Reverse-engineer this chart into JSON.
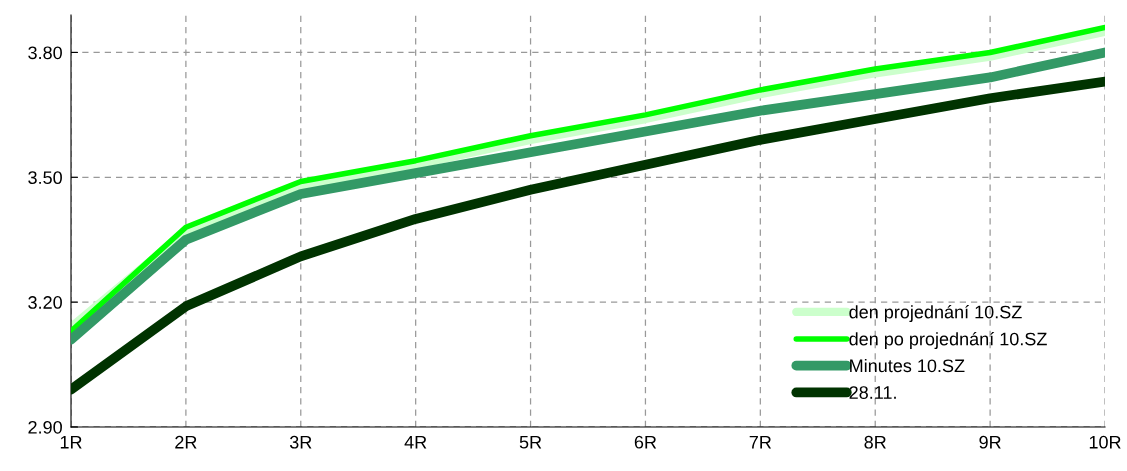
{
  "chart_data": {
    "type": "line",
    "categories": [
      "1R",
      "2R",
      "3R",
      "4R",
      "5R",
      "6R",
      "7R",
      "8R",
      "9R",
      "10R"
    ],
    "series": [
      {
        "name": "den projednání 10.SZ",
        "color": "#ccffcc",
        "values": [
          3.14,
          3.37,
          3.48,
          3.53,
          3.59,
          3.64,
          3.7,
          3.75,
          3.79,
          3.85
        ]
      },
      {
        "name": "den po projednání 10.SZ",
        "color": "#00ff00",
        "values": [
          3.13,
          3.38,
          3.49,
          3.54,
          3.6,
          3.65,
          3.71,
          3.76,
          3.8,
          3.86
        ]
      },
      {
        "name": "Minutes 10.SZ",
        "color": "#339966",
        "values": [
          3.11,
          3.35,
          3.46,
          3.51,
          3.56,
          3.61,
          3.66,
          3.7,
          3.74,
          3.8
        ]
      },
      {
        "name": "28.11.",
        "color": "#003300",
        "values": [
          2.99,
          3.19,
          3.31,
          3.4,
          3.47,
          3.53,
          3.59,
          3.64,
          3.69,
          3.73
        ]
      }
    ],
    "ylim": [
      2.9,
      3.89
    ],
    "yticks": [
      {
        "value": 2.9,
        "label": "2.90"
      },
      {
        "value": 3.2,
        "label": "3.20"
      },
      {
        "value": 3.5,
        "label": "3.50"
      },
      {
        "value": 3.8,
        "label": "3.80"
      }
    ],
    "grid": true,
    "legend": "bottom right",
    "marker": "none",
    "line_style": "solid"
  }
}
